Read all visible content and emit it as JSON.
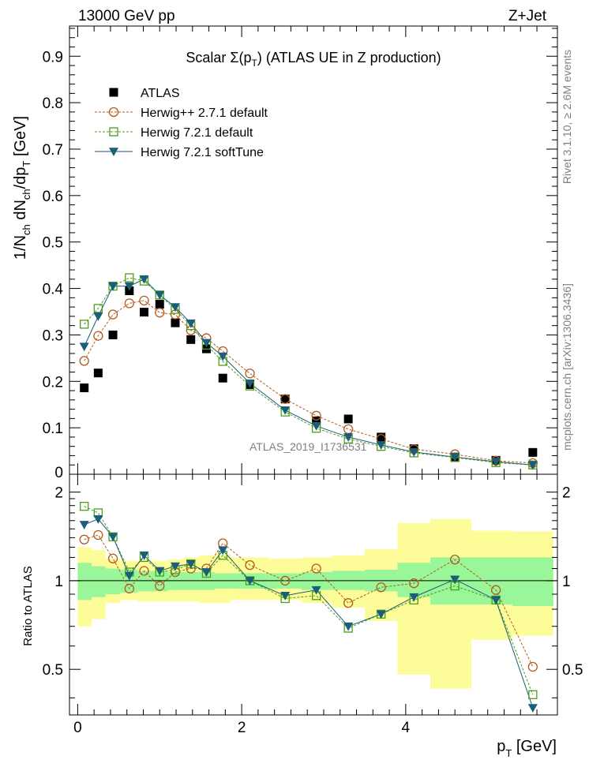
{
  "header": {
    "energy_label": "13000 GeV pp",
    "process_label": "Z+Jet"
  },
  "side_labels": {
    "rivet": "Rivet 3.1.10, ≥ 2.6M events",
    "mcplots": "mcplots.cern.ch [arXiv:1306.3436]"
  },
  "watermark": "ATLAS_2019_I1736531",
  "chart_data": [
    {
      "type": "scatter",
      "title": "Scalar Σ(p_T) (ATLAS UE in Z production)",
      "title_parts": {
        "main": "Scalar Σ(p",
        "sub": "T",
        "end": ") (ATLAS UE in Z production)"
      },
      "ylabel": "1/N_ch dN_ch/dp_T [GeV]",
      "ylabel_parts": [
        "1/N",
        "ch",
        " dN",
        "ch",
        "/dp",
        "T",
        " [GeV]"
      ],
      "xlim": [
        -0.1,
        5.85
      ],
      "ylim": [
        0,
        0.965
      ],
      "yticks": [
        0.1,
        0.2,
        0.3,
        0.4,
        0.5,
        0.6,
        0.7,
        0.8,
        0.9
      ],
      "ytick_labels": [
        "0.1",
        "0.2",
        "0.3",
        "0.4",
        "0.5",
        "0.6",
        "0.7",
        "0.8",
        "0.9"
      ],
      "zero_label": "0",
      "legend_position": "top-left",
      "series": [
        {
          "name": "ATLAS",
          "style": "data",
          "color": "#000000",
          "x": [
            0.08,
            0.25,
            0.43,
            0.63,
            0.81,
            1.0,
            1.19,
            1.38,
            1.57,
            1.77,
            2.1,
            2.53,
            2.91,
            3.3,
            3.7,
            4.1,
            4.6,
            5.1,
            5.55
          ],
          "y": [
            0.186,
            0.218,
            0.3,
            0.395,
            0.349,
            0.366,
            0.326,
            0.29,
            0.27,
            0.207,
            0.193,
            0.162,
            0.115,
            0.119,
            0.08,
            0.055,
            0.037,
            0.03,
            0.047
          ]
        },
        {
          "name": "Herwig++ 2.7.1 default",
          "style": "circle-dashed",
          "color": "#b35a1f",
          "x": [
            0.08,
            0.25,
            0.43,
            0.63,
            0.81,
            1.0,
            1.19,
            1.38,
            1.57,
            1.77,
            2.1,
            2.53,
            2.91,
            3.3,
            3.7,
            4.1,
            4.6,
            5.1,
            5.55
          ],
          "y": [
            0.244,
            0.298,
            0.344,
            0.368,
            0.374,
            0.348,
            0.344,
            0.31,
            0.293,
            0.265,
            0.217,
            0.162,
            0.126,
            0.097,
            0.076,
            0.054,
            0.043,
            0.029,
            0.024
          ]
        },
        {
          "name": "Herwig 7.2.1 default",
          "style": "square-dashed",
          "color": "#4d9e1a",
          "x": [
            0.08,
            0.25,
            0.43,
            0.63,
            0.81,
            1.0,
            1.19,
            1.38,
            1.57,
            1.77,
            2.1,
            2.53,
            2.91,
            3.3,
            3.7,
            4.1,
            4.6,
            5.1,
            5.55
          ],
          "y": [
            0.323,
            0.357,
            0.405,
            0.423,
            0.416,
            0.386,
            0.355,
            0.32,
            0.278,
            0.243,
            0.19,
            0.134,
            0.099,
            0.076,
            0.06,
            0.046,
            0.036,
            0.025,
            0.02
          ]
        },
        {
          "name": "Herwig 7.2.1 softTune",
          "style": "triangle-solid",
          "color": "#1a5e7a",
          "x": [
            0.08,
            0.25,
            0.43,
            0.63,
            0.81,
            1.0,
            1.19,
            1.38,
            1.57,
            1.77,
            2.1,
            2.53,
            2.91,
            3.3,
            3.7,
            4.1,
            4.6,
            5.1,
            5.55
          ],
          "y": [
            0.275,
            0.34,
            0.405,
            0.405,
            0.42,
            0.386,
            0.36,
            0.325,
            0.283,
            0.254,
            0.196,
            0.138,
            0.104,
            0.08,
            0.063,
            0.048,
            0.037,
            0.027,
            0.02
          ]
        }
      ]
    },
    {
      "type": "scatter",
      "ylabel": "Ratio to ATLAS",
      "xlabel": "p_T [GeV]",
      "xlabel_parts": {
        "main": "p",
        "sub": "T",
        "end": " [GeV]"
      },
      "xlim": [
        -0.1,
        5.85
      ],
      "ylim": [
        0.35,
        2.3
      ],
      "xticks": [
        0,
        2,
        4
      ],
      "xtick_labels": [
        "0",
        "2",
        "4"
      ],
      "yticks": [
        0.5,
        1,
        2
      ],
      "ytick_labels": [
        "0.5",
        "1",
        "2"
      ],
      "reference_line": 1,
      "bands": {
        "bin_edges": [
          0,
          0.17,
          0.34,
          0.52,
          0.73,
          0.9,
          1.1,
          1.29,
          1.48,
          1.67,
          1.87,
          2.33,
          2.73,
          3.1,
          3.5,
          3.9,
          4.3,
          4.8,
          5.3,
          5.8
        ],
        "inner_lo": [
          0.86,
          0.88,
          0.9,
          0.91,
          0.92,
          0.92,
          0.93,
          0.93,
          0.93,
          0.94,
          0.94,
          0.94,
          0.93,
          0.93,
          0.92,
          0.88,
          0.83,
          0.83,
          0.82
        ],
        "inner_hi": [
          1.15,
          1.12,
          1.1,
          1.09,
          1.08,
          1.08,
          1.07,
          1.07,
          1.07,
          1.06,
          1.06,
          1.06,
          1.07,
          1.08,
          1.09,
          1.15,
          1.2,
          1.2,
          1.2
        ],
        "outer_lo": [
          0.7,
          0.74,
          0.84,
          0.86,
          0.85,
          0.85,
          0.85,
          0.85,
          0.84,
          0.84,
          0.86,
          0.86,
          0.84,
          0.81,
          0.73,
          0.48,
          0.43,
          0.63,
          0.65
        ],
        "outer_hi": [
          1.3,
          1.27,
          1.19,
          1.17,
          1.17,
          1.17,
          1.18,
          1.2,
          1.22,
          1.23,
          1.2,
          1.19,
          1.2,
          1.22,
          1.28,
          1.57,
          1.62,
          1.48,
          1.47
        ],
        "inner_color": "#99f799",
        "outer_color": "#fcfc99"
      },
      "series": [
        {
          "name": "Herwig++ 2.7.1 default",
          "style": "circle-dashed",
          "color": "#b35a1f",
          "x": [
            0.08,
            0.25,
            0.43,
            0.63,
            0.81,
            1.0,
            1.19,
            1.38,
            1.57,
            1.77,
            2.1,
            2.53,
            2.91,
            3.3,
            3.7,
            4.1,
            4.6,
            5.1,
            5.55
          ],
          "y": [
            1.38,
            1.43,
            1.19,
            0.94,
            1.08,
            0.96,
            1.07,
            1.1,
            1.1,
            1.34,
            1.13,
            1.0,
            1.1,
            0.84,
            0.95,
            0.98,
            1.18,
            0.93,
            0.51
          ]
        },
        {
          "name": "Herwig 7.2.1 default",
          "style": "square-dashed",
          "color": "#4d9e1a",
          "x": [
            0.08,
            0.25,
            0.43,
            0.63,
            0.81,
            1.0,
            1.19,
            1.38,
            1.57,
            1.77,
            2.1,
            2.53,
            2.91,
            3.3,
            3.7,
            4.1,
            4.6,
            5.1,
            5.55
          ],
          "y": [
            1.79,
            1.7,
            1.41,
            1.07,
            1.2,
            1.07,
            1.09,
            1.14,
            1.06,
            1.22,
            1.0,
            0.87,
            0.89,
            0.69,
            0.77,
            0.86,
            0.96,
            0.86,
            0.41
          ]
        },
        {
          "name": "Herwig 7.2.1 softTune",
          "style": "triangle-solid",
          "color": "#1a5e7a",
          "x": [
            0.08,
            0.25,
            0.43,
            0.63,
            0.81,
            1.0,
            1.19,
            1.38,
            1.57,
            1.77,
            2.1,
            2.53,
            2.91,
            3.3,
            3.7,
            4.1,
            4.6,
            5.1,
            5.55
          ],
          "y": [
            1.55,
            1.62,
            1.41,
            1.04,
            1.22,
            1.08,
            1.12,
            1.14,
            1.07,
            1.27,
            1.0,
            0.89,
            0.93,
            0.7,
            0.77,
            0.88,
            1.01,
            0.86,
            0.37
          ]
        }
      ]
    }
  ]
}
